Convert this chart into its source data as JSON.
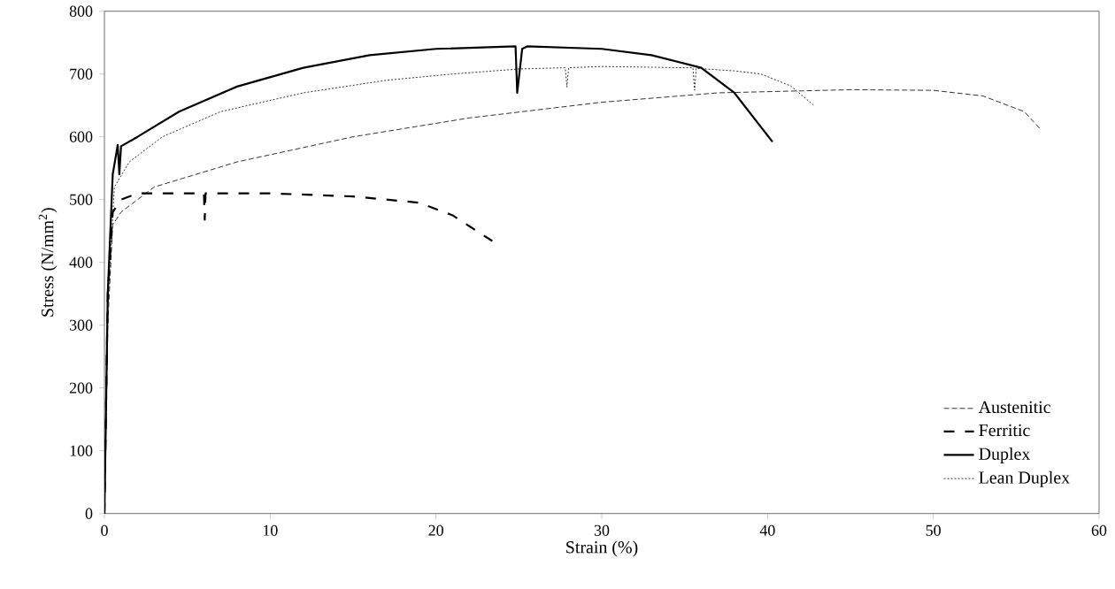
{
  "chart_data": {
    "type": "line",
    "xlabel": "Strain (%)",
    "ylabel": "Stress (N/mm$^{2}$)",
    "xlim": [
      0,
      60
    ],
    "ylim": [
      0,
      800
    ],
    "xticks": [
      0,
      10,
      20,
      30,
      40,
      50,
      60
    ],
    "yticks": [
      0,
      100,
      200,
      300,
      400,
      500,
      600,
      700,
      800
    ],
    "grid": false,
    "legend": "bottom right",
    "marker": "none",
    "series": [
      {
        "name": "Austenitic",
        "color": "#000000",
        "line_style": "dashed",
        "x": [
          0,
          0.2,
          0.5,
          1,
          3,
          8,
          15,
          22,
          30,
          37,
          45,
          50,
          53,
          55.5,
          56.5
        ],
        "values": [
          0,
          300,
          460,
          480,
          520,
          560,
          600,
          630,
          655,
          670,
          675,
          674,
          665,
          640,
          611
        ]
      },
      {
        "name": "Ferritic",
        "color": "#000000",
        "line_style": "dashed",
        "x": [
          0,
          0.2,
          0.5,
          1,
          2,
          6,
          6.05,
          6.1,
          10,
          15,
          19,
          21,
          23.4
        ],
        "values": [
          0,
          350,
          480,
          500,
          510,
          510,
          468,
          510,
          510,
          505,
          495,
          475,
          434
        ]
      },
      {
        "name": "Duplex",
        "color": "#000000",
        "line_style": "solid",
        "x": [
          0,
          0.2,
          0.5,
          0.8,
          0.9,
          1.0,
          2,
          4.5,
          8,
          12,
          16,
          20,
          24.8,
          24.9,
          25.2,
          25.5,
          30,
          33,
          36,
          38,
          40.3
        ],
        "values": [
          0,
          350,
          540,
          587,
          540,
          585,
          600,
          640,
          680,
          710,
          730,
          740,
          744,
          670,
          740,
          744,
          740,
          730,
          710,
          670,
          592
        ]
      },
      {
        "name": "Lean Duplex",
        "color": "#000000",
        "line_style": "dotted",
        "x": [
          0,
          0.2,
          0.6,
          1.5,
          3.5,
          7,
          12,
          17,
          21,
          25,
          27.8,
          27.9,
          28,
          30,
          35,
          35.5,
          35.6,
          35.7,
          38,
          39.6,
          41.4,
          42.8
        ],
        "values": [
          0,
          330,
          520,
          560,
          600,
          640,
          670,
          690,
          700,
          708,
          710,
          679,
          710,
          712,
          710,
          710,
          674,
          709,
          705,
          700,
          681,
          650
        ]
      }
    ]
  }
}
